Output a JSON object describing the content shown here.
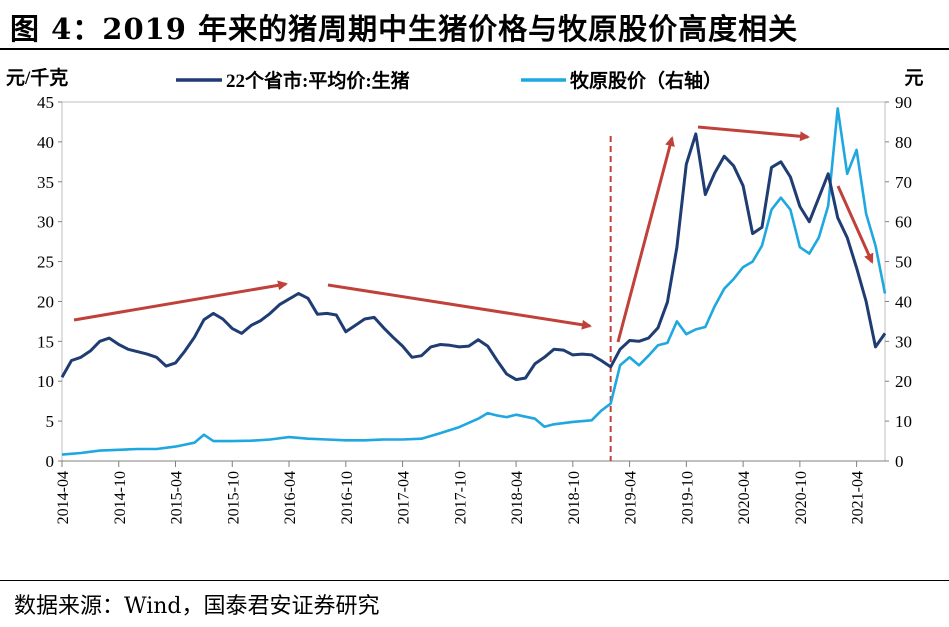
{
  "title": "图 4：2019 年来的猪周期中生猪价格与牧原股价高度相关",
  "source": "数据来源：Wind，国泰君安证券研究",
  "chart_data": {
    "type": "line",
    "left_unit": "元/千克",
    "right_unit": "元",
    "left_axis": {
      "min": 0,
      "max": 45,
      "step": 5
    },
    "right_axis": {
      "min": 0,
      "max": 90,
      "step": 10
    },
    "x_ticks": [
      "2014-04",
      "2014-10",
      "2015-04",
      "2015-10",
      "2016-04",
      "2016-10",
      "2017-04",
      "2017-10",
      "2018-04",
      "2018-10",
      "2019-04",
      "2019-10",
      "2020-04",
      "2020-10",
      "2021-04"
    ],
    "x_start": "2014-04",
    "x_end": "2021-07",
    "divider_date": "2019-02",
    "colors": {
      "pig": "#1F3C73",
      "muyuan": "#1FA7E0",
      "arrow": "#C0413A"
    },
    "series": [
      {
        "name": "22个省市:平均价:生猪",
        "axis": "left",
        "points": [
          [
            "2014-04",
            10.5
          ],
          [
            "2014-05",
            12.6
          ],
          [
            "2014-06",
            13.0
          ],
          [
            "2014-07",
            13.8
          ],
          [
            "2014-08",
            15.0
          ],
          [
            "2014-09",
            15.4
          ],
          [
            "2014-10",
            14.6
          ],
          [
            "2014-11",
            14.0
          ],
          [
            "2014-12",
            13.7
          ],
          [
            "2015-01",
            13.4
          ],
          [
            "2015-02",
            13.0
          ],
          [
            "2015-03",
            11.9
          ],
          [
            "2015-04",
            12.3
          ],
          [
            "2015-05",
            13.8
          ],
          [
            "2015-06",
            15.5
          ],
          [
            "2015-07",
            17.7
          ],
          [
            "2015-08",
            18.5
          ],
          [
            "2015-09",
            17.8
          ],
          [
            "2015-10",
            16.6
          ],
          [
            "2015-11",
            16.0
          ],
          [
            "2015-12",
            17.0
          ],
          [
            "2016-01",
            17.6
          ],
          [
            "2016-02",
            18.5
          ],
          [
            "2016-03",
            19.6
          ],
          [
            "2016-04",
            20.3
          ],
          [
            "2016-05",
            21.0
          ],
          [
            "2016-06",
            20.4
          ],
          [
            "2016-07",
            18.4
          ],
          [
            "2016-08",
            18.5
          ],
          [
            "2016-09",
            18.3
          ],
          [
            "2016-10",
            16.2
          ],
          [
            "2016-11",
            17.0
          ],
          [
            "2016-12",
            17.8
          ],
          [
            "2017-01",
            18.0
          ],
          [
            "2017-02",
            16.7
          ],
          [
            "2017-03",
            15.5
          ],
          [
            "2017-04",
            14.4
          ],
          [
            "2017-05",
            13.0
          ],
          [
            "2017-06",
            13.2
          ],
          [
            "2017-07",
            14.3
          ],
          [
            "2017-08",
            14.6
          ],
          [
            "2017-09",
            14.5
          ],
          [
            "2017-10",
            14.3
          ],
          [
            "2017-11",
            14.4
          ],
          [
            "2017-12",
            15.2
          ],
          [
            "2018-01",
            14.4
          ],
          [
            "2018-02",
            12.6
          ],
          [
            "2018-03",
            10.9
          ],
          [
            "2018-04",
            10.2
          ],
          [
            "2018-05",
            10.4
          ],
          [
            "2018-06",
            12.2
          ],
          [
            "2018-07",
            13.0
          ],
          [
            "2018-08",
            14.0
          ],
          [
            "2018-09",
            13.9
          ],
          [
            "2018-10",
            13.3
          ],
          [
            "2018-11",
            13.4
          ],
          [
            "2018-12",
            13.3
          ],
          [
            "2019-01",
            12.6
          ],
          [
            "2019-02",
            11.8
          ],
          [
            "2019-03",
            14.0
          ],
          [
            "2019-04",
            15.1
          ],
          [
            "2019-05",
            15.0
          ],
          [
            "2019-06",
            15.4
          ],
          [
            "2019-07",
            16.7
          ],
          [
            "2019-08",
            19.9
          ],
          [
            "2019-09",
            26.8
          ],
          [
            "2019-10",
            37.2
          ],
          [
            "2019-11",
            41.0
          ],
          [
            "2019-12",
            33.4
          ],
          [
            "2020-01",
            36.1
          ],
          [
            "2020-02",
            38.2
          ],
          [
            "2020-03",
            37.0
          ],
          [
            "2020-04",
            34.5
          ],
          [
            "2020-05",
            28.5
          ],
          [
            "2020-06",
            29.3
          ],
          [
            "2020-07",
            36.8
          ],
          [
            "2020-08",
            37.5
          ],
          [
            "2020-09",
            35.6
          ],
          [
            "2020-10",
            31.9
          ],
          [
            "2020-11",
            30.0
          ],
          [
            "2020-12",
            33.0
          ],
          [
            "2021-01",
            36.0
          ],
          [
            "2021-02",
            30.5
          ],
          [
            "2021-03",
            28.0
          ],
          [
            "2021-04",
            24.2
          ],
          [
            "2021-05",
            20.0
          ],
          [
            "2021-06",
            14.3
          ],
          [
            "2021-07",
            16.0
          ]
        ]
      },
      {
        "name": "牧原股价（右轴）",
        "axis": "right",
        "points": [
          [
            "2014-04",
            1.6
          ],
          [
            "2014-06",
            2.0
          ],
          [
            "2014-08",
            2.6
          ],
          [
            "2014-10",
            2.8
          ],
          [
            "2014-12",
            3.0
          ],
          [
            "2015-02",
            3.0
          ],
          [
            "2015-04",
            3.6
          ],
          [
            "2015-06",
            4.6
          ],
          [
            "2015-07",
            6.6
          ],
          [
            "2015-08",
            5.0
          ],
          [
            "2015-10",
            5.0
          ],
          [
            "2015-12",
            5.1
          ],
          [
            "2016-02",
            5.4
          ],
          [
            "2016-04",
            6.0
          ],
          [
            "2016-06",
            5.6
          ],
          [
            "2016-08",
            5.4
          ],
          [
            "2016-10",
            5.2
          ],
          [
            "2016-12",
            5.2
          ],
          [
            "2017-02",
            5.4
          ],
          [
            "2017-04",
            5.4
          ],
          [
            "2017-06",
            5.6
          ],
          [
            "2017-08",
            7.0
          ],
          [
            "2017-10",
            8.5
          ],
          [
            "2017-12",
            10.6
          ],
          [
            "2018-01",
            12.0
          ],
          [
            "2018-02",
            11.4
          ],
          [
            "2018-03",
            11.0
          ],
          [
            "2018-04",
            11.6
          ],
          [
            "2018-06",
            10.6
          ],
          [
            "2018-07",
            8.6
          ],
          [
            "2018-08",
            9.2
          ],
          [
            "2018-10",
            9.8
          ],
          [
            "2018-12",
            10.2
          ],
          [
            "2019-01",
            12.6
          ],
          [
            "2019-02",
            14.4
          ],
          [
            "2019-03",
            24.0
          ],
          [
            "2019-04",
            26.0
          ],
          [
            "2019-05",
            24.0
          ],
          [
            "2019-06",
            26.4
          ],
          [
            "2019-07",
            29.0
          ],
          [
            "2019-08",
            29.6
          ],
          [
            "2019-09",
            35.0
          ],
          [
            "2019-10",
            31.8
          ],
          [
            "2019-11",
            33.0
          ],
          [
            "2019-12",
            33.6
          ],
          [
            "2020-01",
            38.8
          ],
          [
            "2020-02",
            43.2
          ],
          [
            "2020-03",
            45.6
          ],
          [
            "2020-04",
            48.6
          ],
          [
            "2020-05",
            50.0
          ],
          [
            "2020-06",
            54.0
          ],
          [
            "2020-07",
            63.0
          ],
          [
            "2020-08",
            66.0
          ],
          [
            "2020-09",
            63.0
          ],
          [
            "2020-10",
            53.6
          ],
          [
            "2020-11",
            52.0
          ],
          [
            "2020-12",
            56.0
          ],
          [
            "2021-01",
            64.0
          ],
          [
            "2021-02",
            88.4
          ],
          [
            "2021-03",
            72.0
          ],
          [
            "2021-04",
            78.0
          ],
          [
            "2021-05",
            62.0
          ],
          [
            "2021-06",
            54.0
          ],
          [
            "2021-07",
            42.0
          ]
        ]
      }
    ]
  }
}
